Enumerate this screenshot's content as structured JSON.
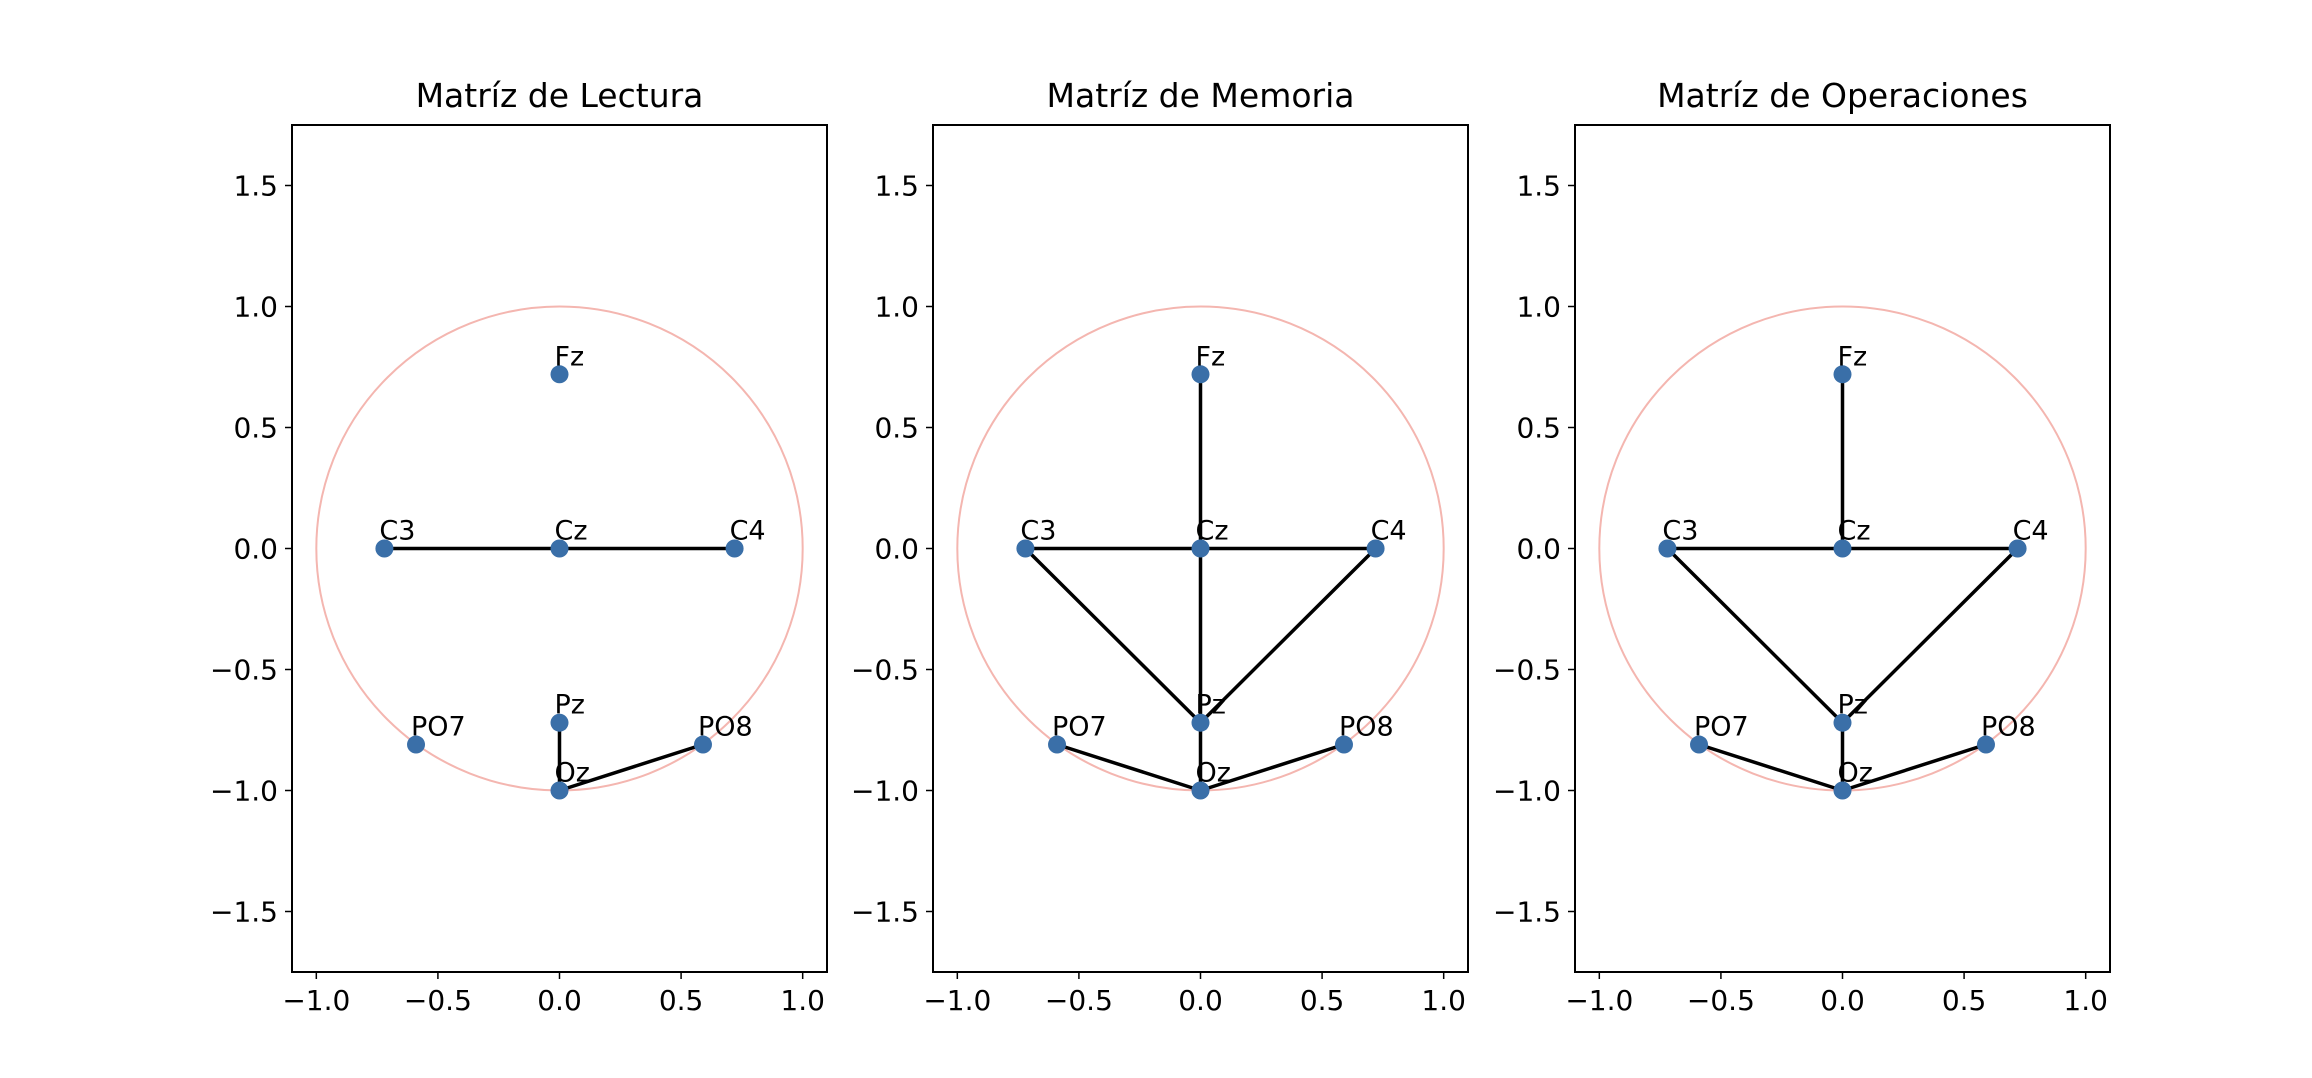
{
  "chart_data": [
    {
      "type": "scatter",
      "title": "Matríz de Lectura",
      "xlabel": "",
      "ylabel": "",
      "xlim": [
        -1.1,
        1.1
      ],
      "ylim": [
        -1.75,
        1.75
      ],
      "grid": false,
      "xticks": [
        -1.0,
        -0.5,
        0.0,
        0.5,
        1.0
      ],
      "yticks": [
        -1.5,
        -1.0,
        -0.5,
        0.0,
        0.5,
        1.0,
        1.5
      ],
      "xtick_labels": [
        "−1.0",
        "−0.5",
        "0.0",
        "0.5",
        "1.0"
      ],
      "ytick_labels": [
        "−1.5",
        "−1.0",
        "−0.5",
        "0.0",
        "0.5",
        "1.0",
        "1.5"
      ],
      "circle": {
        "cx": 0,
        "cy": 0,
        "r": 1,
        "color": "#f4b6b0"
      },
      "nodes": [
        {
          "label": "Fz",
          "x": 0.0,
          "y": 0.72
        },
        {
          "label": "C3",
          "x": -0.72,
          "y": 0.0
        },
        {
          "label": "Cz",
          "x": 0.0,
          "y": 0.0
        },
        {
          "label": "C4",
          "x": 0.72,
          "y": 0.0
        },
        {
          "label": "PO7",
          "x": -0.59,
          "y": -0.81
        },
        {
          "label": "Pz",
          "x": 0.0,
          "y": -0.72
        },
        {
          "label": "PO8",
          "x": 0.59,
          "y": -0.81
        },
        {
          "label": "Oz",
          "x": 0.0,
          "y": -1.0
        }
      ],
      "edges": [
        [
          "C3",
          "Cz"
        ],
        [
          "Cz",
          "C4"
        ],
        [
          "Pz",
          "Oz"
        ],
        [
          "Oz",
          "PO8"
        ]
      ]
    },
    {
      "type": "scatter",
      "title": "Matríz de Memoria",
      "xlabel": "",
      "ylabel": "",
      "xlim": [
        -1.1,
        1.1
      ],
      "ylim": [
        -1.75,
        1.75
      ],
      "grid": false,
      "xticks": [
        -1.0,
        -0.5,
        0.0,
        0.5,
        1.0
      ],
      "yticks": [
        -1.5,
        -1.0,
        -0.5,
        0.0,
        0.5,
        1.0,
        1.5
      ],
      "xtick_labels": [
        "−1.0",
        "−0.5",
        "0.0",
        "0.5",
        "1.0"
      ],
      "ytick_labels": [
        "−1.5",
        "−1.0",
        "−0.5",
        "0.0",
        "0.5",
        "1.0",
        "1.5"
      ],
      "circle": {
        "cx": 0,
        "cy": 0,
        "r": 1,
        "color": "#f4b6b0"
      },
      "nodes": [
        {
          "label": "Fz",
          "x": 0.0,
          "y": 0.72
        },
        {
          "label": "C3",
          "x": -0.72,
          "y": 0.0
        },
        {
          "label": "Cz",
          "x": 0.0,
          "y": 0.0
        },
        {
          "label": "C4",
          "x": 0.72,
          "y": 0.0
        },
        {
          "label": "PO7",
          "x": -0.59,
          "y": -0.81
        },
        {
          "label": "Pz",
          "x": 0.0,
          "y": -0.72
        },
        {
          "label": "PO8",
          "x": 0.59,
          "y": -0.81
        },
        {
          "label": "Oz",
          "x": 0.0,
          "y": -1.0
        }
      ],
      "edges": [
        [
          "Fz",
          "Cz"
        ],
        [
          "C3",
          "Cz"
        ],
        [
          "Cz",
          "C4"
        ],
        [
          "Cz",
          "Pz"
        ],
        [
          "C3",
          "Pz"
        ],
        [
          "C4",
          "Pz"
        ],
        [
          "Pz",
          "Oz"
        ],
        [
          "PO7",
          "Oz"
        ],
        [
          "Oz",
          "PO8"
        ]
      ]
    },
    {
      "type": "scatter",
      "title": "Matríz de Operaciones",
      "xlabel": "",
      "ylabel": "",
      "xlim": [
        -1.1,
        1.1
      ],
      "ylim": [
        -1.75,
        1.75
      ],
      "grid": false,
      "xticks": [
        -1.0,
        -0.5,
        0.0,
        0.5,
        1.0
      ],
      "yticks": [
        -1.5,
        -1.0,
        -0.5,
        0.0,
        0.5,
        1.0,
        1.5
      ],
      "xtick_labels": [
        "−1.0",
        "−0.5",
        "0.0",
        "0.5",
        "1.0"
      ],
      "ytick_labels": [
        "−1.5",
        "−1.0",
        "−0.5",
        "0.0",
        "0.5",
        "1.0",
        "1.5"
      ],
      "circle": {
        "cx": 0,
        "cy": 0,
        "r": 1,
        "color": "#f4b6b0"
      },
      "nodes": [
        {
          "label": "Fz",
          "x": 0.0,
          "y": 0.72
        },
        {
          "label": "C3",
          "x": -0.72,
          "y": 0.0
        },
        {
          "label": "Cz",
          "x": 0.0,
          "y": 0.0
        },
        {
          "label": "C4",
          "x": 0.72,
          "y": 0.0
        },
        {
          "label": "PO7",
          "x": -0.59,
          "y": -0.81
        },
        {
          "label": "Pz",
          "x": 0.0,
          "y": -0.72
        },
        {
          "label": "PO8",
          "x": 0.59,
          "y": -0.81
        },
        {
          "label": "Oz",
          "x": 0.0,
          "y": -1.0
        }
      ],
      "edges": [
        [
          "Fz",
          "Cz"
        ],
        [
          "C3",
          "Cz"
        ],
        [
          "Cz",
          "C4"
        ],
        [
          "C3",
          "Pz"
        ],
        [
          "C4",
          "Pz"
        ],
        [
          "Pz",
          "Oz"
        ],
        [
          "PO7",
          "Oz"
        ],
        [
          "Oz",
          "PO8"
        ]
      ]
    }
  ],
  "colors": {
    "node": "#3a6fa8",
    "edge": "#000000",
    "circle": "#f4b6b0",
    "axes": "#000000"
  }
}
